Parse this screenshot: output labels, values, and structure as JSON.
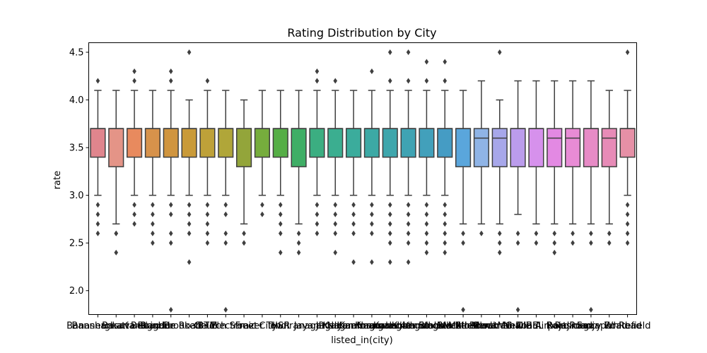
{
  "chart_data": {
    "type": "box",
    "title": "Rating Distribution by City",
    "xlabel": "listed_in(city)",
    "ylabel": "rate",
    "ylim": [
      1.75,
      4.6
    ],
    "yticks": [
      2.0,
      2.5,
      3.0,
      3.5,
      4.0,
      4.5
    ],
    "grid": false,
    "categories": [
      "Banashankari",
      "Bannerghatta Road",
      "Basavanagudi",
      "Bellandur",
      "Brigade Road",
      "Brookefield",
      "BTM",
      "Church Street",
      "Electronic City",
      "Frazer Town",
      "HSR",
      "Indiranagar",
      "Jayanagar",
      "JP Nagar",
      "Kalyan Nagar",
      "Kammanahalli",
      "Koramangala 4th Block",
      "Koramangala 5th Block",
      "Koramangala 6th Block",
      "Koramangala 7th Block",
      "Lavelle Road",
      "Malleshwaram",
      "Marathahalli",
      "MG Road",
      "New BEL Road",
      "Old Airport Road",
      "Rajajinagar",
      "Residency Road",
      "Sarjapur Road",
      "Whitefield"
    ],
    "boxes": [
      {
        "q1": 3.4,
        "median": 3.7,
        "q3": 3.7,
        "whislo": 3.0,
        "whishi": 4.1,
        "color": "#e0858d",
        "fliers": [
          2.6,
          2.7,
          2.8,
          2.9,
          4.2
        ]
      },
      {
        "q1": 3.3,
        "median": 3.7,
        "q3": 3.7,
        "whislo": 2.7,
        "whishi": 4.1,
        "color": "#e49487",
        "fliers": [
          2.4,
          2.6,
          2.6
        ]
      },
      {
        "q1": 3.4,
        "median": 3.7,
        "q3": 3.7,
        "whislo": 3.0,
        "whishi": 4.1,
        "color": "#e88a5e",
        "fliers": [
          2.7,
          2.8,
          2.9,
          4.2,
          4.3
        ]
      },
      {
        "q1": 3.4,
        "median": 3.7,
        "q3": 3.7,
        "whislo": 3.0,
        "whishi": 4.1,
        "color": "#d7924b",
        "fliers": [
          2.5,
          2.6,
          2.7,
          2.8,
          2.9
        ]
      },
      {
        "q1": 3.4,
        "median": 3.7,
        "q3": 3.7,
        "whislo": 3.0,
        "whishi": 4.1,
        "color": "#d0953f",
        "fliers": [
          1.8,
          2.5,
          2.6,
          2.8,
          2.9,
          4.2,
          4.3
        ]
      },
      {
        "q1": 3.4,
        "median": 3.7,
        "q3": 3.7,
        "whislo": 3.0,
        "whishi": 4.0,
        "color": "#c99a38",
        "fliers": [
          2.3,
          2.6,
          2.7,
          2.8,
          2.9,
          4.5
        ]
      },
      {
        "q1": 3.4,
        "median": 3.7,
        "q3": 3.7,
        "whislo": 3.0,
        "whishi": 4.1,
        "color": "#bea139",
        "fliers": [
          2.5,
          2.6,
          2.7,
          2.8,
          2.9,
          4.2
        ]
      },
      {
        "q1": 3.4,
        "median": 3.7,
        "q3": 3.7,
        "whislo": 3.0,
        "whishi": 4.1,
        "color": "#b0a639",
        "fliers": [
          1.8,
          2.5,
          2.6,
          2.8,
          2.9
        ]
      },
      {
        "q1": 3.3,
        "median": 3.7,
        "q3": 3.7,
        "whislo": 2.7,
        "whishi": 4.0,
        "color": "#93a53a",
        "fliers": [
          2.5,
          2.6
        ]
      },
      {
        "q1": 3.4,
        "median": 3.7,
        "q3": 3.7,
        "whislo": 3.0,
        "whishi": 4.1,
        "color": "#76ad3d",
        "fliers": [
          2.8,
          2.9
        ]
      },
      {
        "q1": 3.4,
        "median": 3.7,
        "q3": 3.7,
        "whislo": 3.0,
        "whishi": 4.1,
        "color": "#55ae46",
        "fliers": [
          2.4,
          2.6,
          2.7,
          2.8,
          2.9
        ]
      },
      {
        "q1": 3.3,
        "median": 3.7,
        "q3": 3.7,
        "whislo": 2.7,
        "whishi": 4.1,
        "color": "#3fae66",
        "fliers": [
          2.4,
          2.5,
          2.6
        ]
      },
      {
        "q1": 3.4,
        "median": 3.7,
        "q3": 3.7,
        "whislo": 3.0,
        "whishi": 4.1,
        "color": "#3bae81",
        "fliers": [
          2.6,
          2.7,
          2.8,
          2.9,
          4.2,
          4.3
        ]
      },
      {
        "q1": 3.4,
        "median": 3.7,
        "q3": 3.7,
        "whislo": 3.0,
        "whishi": 4.1,
        "color": "#3bae90",
        "fliers": [
          2.4,
          2.6,
          2.7,
          2.8,
          2.9,
          4.2
        ]
      },
      {
        "q1": 3.4,
        "median": 3.7,
        "q3": 3.7,
        "whislo": 3.0,
        "whishi": 4.1,
        "color": "#3bac9c",
        "fliers": [
          2.3,
          2.6,
          2.7,
          2.8,
          2.9
        ]
      },
      {
        "q1": 3.4,
        "median": 3.7,
        "q3": 3.7,
        "whislo": 3.0,
        "whishi": 4.1,
        "color": "#3ca9a5",
        "fliers": [
          2.3,
          2.6,
          2.7,
          2.8,
          2.9,
          4.3
        ]
      },
      {
        "q1": 3.4,
        "median": 3.7,
        "q3": 3.7,
        "whislo": 3.0,
        "whishi": 4.1,
        "color": "#3ea6ac",
        "fliers": [
          2.3,
          2.5,
          2.6,
          2.7,
          2.8,
          2.9,
          4.2,
          4.5
        ]
      },
      {
        "q1": 3.4,
        "median": 3.7,
        "q3": 3.7,
        "whislo": 3.0,
        "whishi": 4.1,
        "color": "#3fa3b3",
        "fliers": [
          2.3,
          2.5,
          2.6,
          2.7,
          2.8,
          2.9,
          4.2,
          4.5
        ]
      },
      {
        "q1": 3.4,
        "median": 3.7,
        "q3": 3.7,
        "whislo": 3.0,
        "whishi": 4.1,
        "color": "#42a0bb",
        "fliers": [
          2.4,
          2.5,
          2.6,
          2.7,
          2.8,
          2.9,
          4.2,
          4.4
        ]
      },
      {
        "q1": 3.4,
        "median": 3.7,
        "q3": 3.7,
        "whislo": 3.0,
        "whishi": 4.1,
        "color": "#459cc4",
        "fliers": [
          2.4,
          2.5,
          2.6,
          2.7,
          2.8,
          2.9,
          4.2,
          4.4
        ]
      },
      {
        "q1": 3.3,
        "median": 3.7,
        "q3": 3.7,
        "whislo": 2.7,
        "whishi": 4.1,
        "color": "#5aa6dc",
        "fliers": [
          1.8,
          2.5,
          2.6
        ]
      },
      {
        "q1": 3.3,
        "median": 3.6,
        "q3": 3.7,
        "whislo": 2.7,
        "whishi": 4.2,
        "color": "#8fb4e6",
        "fliers": [
          2.6
        ]
      },
      {
        "q1": 3.3,
        "median": 3.6,
        "q3": 3.7,
        "whislo": 2.7,
        "whishi": 4.0,
        "color": "#a7a7ea",
        "fliers": [
          2.4,
          2.5,
          2.6,
          4.5
        ]
      },
      {
        "q1": 3.3,
        "median": 3.7,
        "q3": 3.7,
        "whislo": 2.8,
        "whishi": 4.2,
        "color": "#bb9cec",
        "fliers": [
          1.8,
          2.5,
          2.6
        ]
      },
      {
        "q1": 3.3,
        "median": 3.7,
        "q3": 3.7,
        "whislo": 2.7,
        "whishi": 4.2,
        "color": "#d691ec",
        "fliers": [
          2.5,
          2.6
        ]
      },
      {
        "q1": 3.3,
        "median": 3.6,
        "q3": 3.7,
        "whislo": 2.7,
        "whishi": 4.2,
        "color": "#e389e3",
        "fliers": [
          2.4,
          2.5,
          2.6
        ]
      },
      {
        "q1": 3.3,
        "median": 3.6,
        "q3": 3.7,
        "whislo": 2.7,
        "whishi": 4.2,
        "color": "#e88bd5",
        "fliers": [
          2.5,
          2.6
        ]
      },
      {
        "q1": 3.3,
        "median": 3.7,
        "q3": 3.7,
        "whislo": 2.7,
        "whishi": 4.2,
        "color": "#e78bc6",
        "fliers": [
          1.8,
          2.5,
          2.6
        ]
      },
      {
        "q1": 3.3,
        "median": 3.6,
        "q3": 3.7,
        "whislo": 2.7,
        "whishi": 4.1,
        "color": "#e78bb7",
        "fliers": [
          2.5,
          2.6
        ]
      },
      {
        "q1": 3.4,
        "median": 3.7,
        "q3": 3.7,
        "whislo": 3.0,
        "whishi": 4.1,
        "color": "#e690a6",
        "fliers": [
          2.5,
          2.6,
          2.7,
          2.8,
          2.9,
          4.5
        ]
      }
    ]
  }
}
